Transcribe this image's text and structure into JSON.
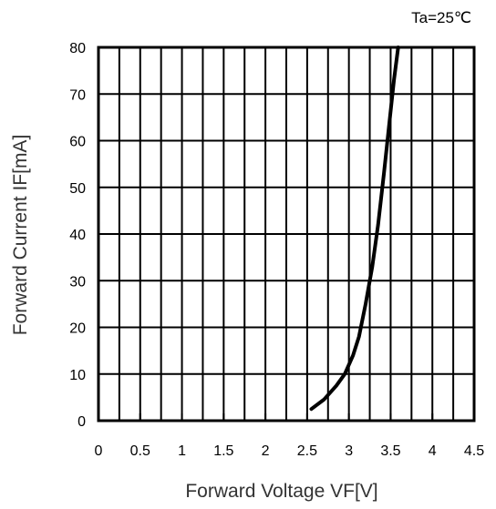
{
  "chart_data": {
    "type": "line",
    "annotation": "Ta=25℃",
    "xlabel": "Forward Voltage VF[V]",
    "ylabel": "Forward Current IF[mA]",
    "xlim": [
      0,
      4.5
    ],
    "ylim": [
      0,
      80
    ],
    "x_ticks": [
      "0",
      "0.5",
      "1",
      "1.5",
      "2",
      "2.5",
      "3",
      "3.5",
      "4",
      "4.5"
    ],
    "y_ticks": [
      "0",
      "10",
      "20",
      "30",
      "40",
      "50",
      "60",
      "70",
      "80"
    ],
    "grid": true,
    "series": [
      {
        "x": [
          2.55,
          2.7,
          2.85,
          2.95,
          3.05,
          3.12,
          3.2,
          3.28,
          3.35,
          3.42,
          3.48,
          3.54,
          3.59
        ],
        "y": [
          2.5,
          4.5,
          7.5,
          10,
          14,
          18,
          25,
          33,
          42,
          53,
          63,
          73,
          80
        ]
      }
    ]
  }
}
